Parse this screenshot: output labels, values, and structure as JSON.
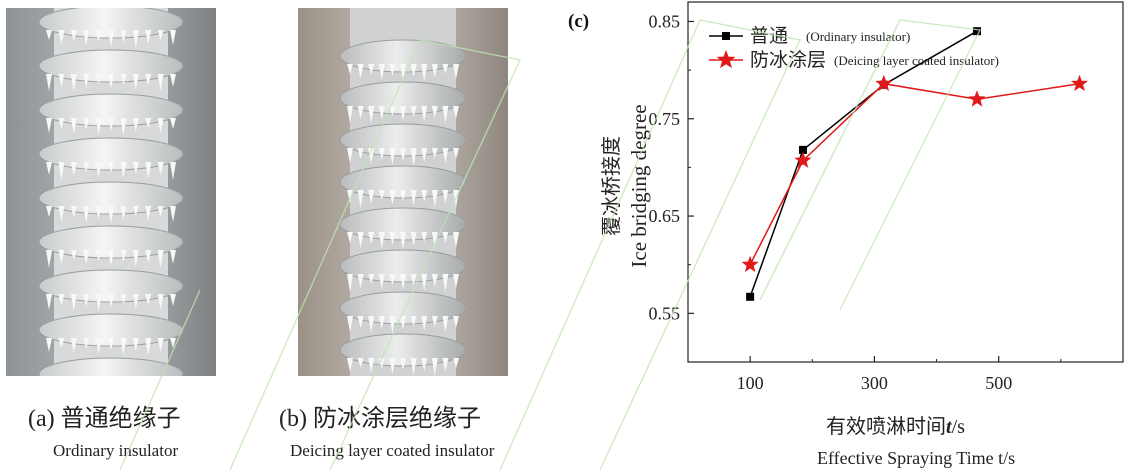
{
  "panel_a": {
    "caption_cn": "(a) 普通绝缘子",
    "caption_en": "Ordinary insulator"
  },
  "panel_b": {
    "caption_cn": "(b) 防冰涂层绝缘子",
    "caption_en": "Deicing layer coated insulator"
  },
  "chart_data": {
    "type": "line",
    "panel_label": "(c)",
    "ylabel_cn": "覆冰桥接度",
    "ylabel_en": "Ice bridging degree",
    "xlabel_cn": "有效喷淋时间",
    "xlabel_var": "t",
    "xlabel_unit": "/s",
    "xlabel_en": "Effective Spraying Time t/s",
    "xlim": [
      0,
      700
    ],
    "ylim": [
      0.5,
      0.87
    ],
    "xticks": [
      100,
      300,
      500
    ],
    "yticks": [
      0.55,
      0.65,
      0.75,
      0.85
    ],
    "ytick_labels": [
      "0.55",
      "0.65",
      "0.75",
      "0.85"
    ],
    "legend_position": "top-left",
    "grid": false,
    "series": [
      {
        "name_cn": "普通",
        "name_en": "(Ordinary insulator)",
        "marker": "square",
        "color": "#000000",
        "x": [
          100,
          185,
          315,
          465
        ],
        "y": [
          0.567,
          0.718,
          0.785,
          0.84
        ]
      },
      {
        "name_cn": "防冰涂层",
        "name_en": "(Deicing layer coated insulator)",
        "marker": "star",
        "color": "#e0191a",
        "x": [
          100,
          185,
          315,
          465,
          630
        ],
        "y": [
          0.6,
          0.707,
          0.786,
          0.77,
          0.786
        ]
      }
    ]
  }
}
